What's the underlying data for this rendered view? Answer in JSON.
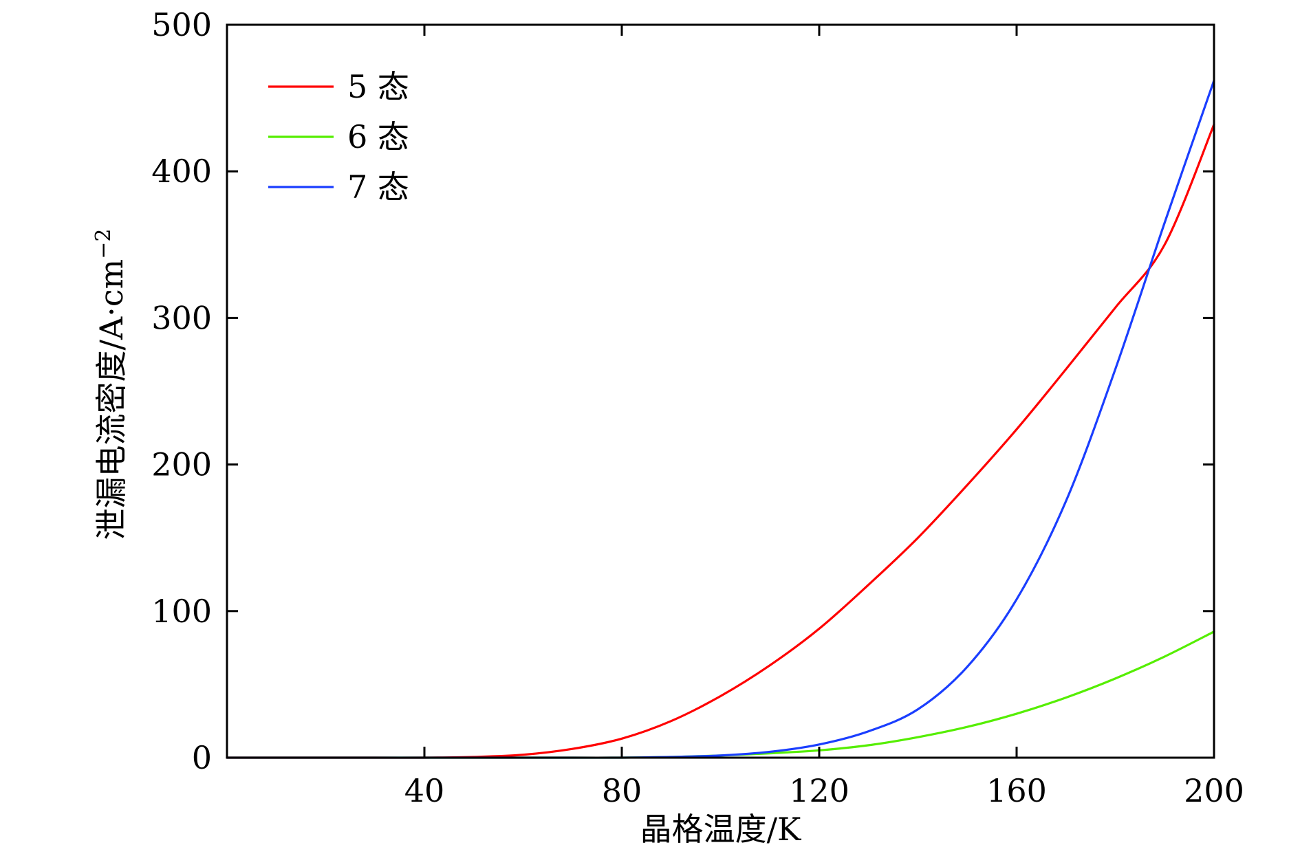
{
  "chart_data": {
    "type": "line",
    "xlabel": "晶格温度/K",
    "ylabel": "泄漏电流密度/A·cm",
    "ylabel_superscript": "−2",
    "xlim": [
      0,
      200
    ],
    "ylim": [
      0,
      500
    ],
    "x_ticks": [
      40,
      80,
      120,
      160,
      200
    ],
    "x_tick_labels": [
      "40",
      "80",
      "120",
      "160",
      "200"
    ],
    "y_ticks": [
      0,
      100,
      200,
      300,
      400,
      500
    ],
    "y_tick_labels": [
      "0",
      "100",
      "200",
      "300",
      "400",
      "500"
    ],
    "grid": false,
    "legend_position": "top-left",
    "x": [
      0,
      10,
      20,
      30,
      40,
      50,
      60,
      70,
      80,
      90,
      100,
      110,
      120,
      130,
      140,
      150,
      160,
      170,
      180,
      190,
      200
    ],
    "series": [
      {
        "name": "5 态",
        "color": "#ff0000",
        "values": [
          0,
          0,
          0,
          0,
          0,
          0.5,
          2,
          6,
          13,
          25,
          42,
          63,
          88,
          118,
          150,
          186,
          224,
          265,
          307,
          350,
          432
        ]
      },
      {
        "name": "6 态",
        "color": "#55ee00",
        "values": [
          0,
          0,
          0,
          0,
          0,
          0,
          0,
          0,
          0,
          0.5,
          1.5,
          3,
          5,
          8.5,
          14,
          21,
          30,
          41,
          54,
          69,
          86
        ]
      },
      {
        "name": "7 态",
        "color": "#1a3eff",
        "values": [
          0,
          0,
          0,
          0,
          0,
          0,
          0,
          0,
          0,
          0.5,
          1.5,
          4,
          9,
          18,
          33,
          62,
          108,
          175,
          265,
          365,
          462
        ]
      }
    ]
  }
}
